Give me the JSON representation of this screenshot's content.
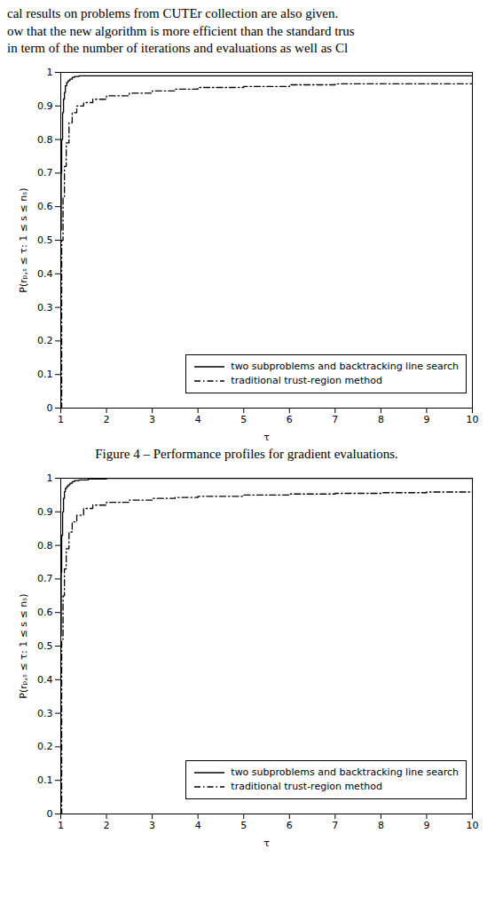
{
  "chart_data": [
    {
      "type": "step",
      "annotations": [
        "cal results on problems from CUTEr collection are also given.",
        "ow that the new algorithm is more efficient than the standard trus",
        "in term of the number of iterations and evaluations as well as Cl"
      ],
      "caption": "Figure 4 – Performance profiles for gradient evaluations.",
      "xlabel": "τ",
      "ylabel": "P(rₚ,ₛ ≤ τ: 1 ≤ s ≤ nₛ)",
      "xlim": [
        1,
        10
      ],
      "ylim": [
        0,
        1
      ],
      "xticks": [
        1,
        2,
        3,
        4,
        5,
        6,
        7,
        8,
        9,
        10
      ],
      "yticks": [
        0,
        0.1,
        0.2,
        0.3,
        0.4,
        0.5,
        0.6,
        0.7,
        0.8,
        0.9,
        1
      ],
      "grid": false,
      "legend": "lower right",
      "series": [
        {
          "name": "two subproblems and backtracking line search",
          "color": "#000000",
          "line_style": "solid",
          "x": [
            1.0,
            1.01,
            1.02,
            1.04,
            1.06,
            1.08,
            1.1,
            1.13,
            1.16,
            1.2,
            1.25,
            1.3,
            1.4,
            1.6,
            2.0,
            10.0
          ],
          "values": [
            0.53,
            0.7,
            0.8,
            0.88,
            0.92,
            0.94,
            0.96,
            0.97,
            0.975,
            0.98,
            0.985,
            0.988,
            0.99,
            0.99,
            0.99,
            0.99
          ]
        },
        {
          "name": "traditional trust-region method",
          "color": "#000000",
          "line_style": "dashdot",
          "x": [
            1.0,
            1.02,
            1.05,
            1.08,
            1.12,
            1.18,
            1.25,
            1.35,
            1.5,
            1.7,
            2.0,
            2.5,
            3.0,
            3.5,
            4.0,
            5.0,
            6.0,
            7.0,
            10.0
          ],
          "values": [
            0.0,
            0.5,
            0.63,
            0.72,
            0.79,
            0.85,
            0.88,
            0.9,
            0.91,
            0.92,
            0.93,
            0.938,
            0.945,
            0.95,
            0.955,
            0.958,
            0.963,
            0.966,
            0.968
          ]
        }
      ]
    },
    {
      "type": "step",
      "xlabel": "τ",
      "ylabel": "P(rₚ,ₛ ≤ τ: 1 ≤ s ≤ nₛ)",
      "xlim": [
        1,
        10
      ],
      "ylim": [
        0,
        1
      ],
      "xticks": [
        1,
        2,
        3,
        4,
        5,
        6,
        7,
        8,
        9,
        10
      ],
      "yticks": [
        0,
        0.1,
        0.2,
        0.3,
        0.4,
        0.5,
        0.6,
        0.7,
        0.8,
        0.9,
        1
      ],
      "grid": false,
      "legend": "lower right",
      "series": [
        {
          "name": "two subproblems and backtracking line search",
          "color": "#000000",
          "line_style": "solid",
          "x": [
            1.0,
            1.01,
            1.02,
            1.04,
            1.06,
            1.08,
            1.1,
            1.13,
            1.16,
            1.2,
            1.25,
            1.3,
            1.4,
            1.6,
            2.0,
            10.0
          ],
          "values": [
            0.53,
            0.72,
            0.83,
            0.9,
            0.94,
            0.96,
            0.97,
            0.975,
            0.98,
            0.985,
            0.99,
            0.993,
            0.995,
            0.998,
            1.0,
            1.0
          ]
        },
        {
          "name": "traditional trust-region method",
          "color": "#000000",
          "line_style": "dashdot",
          "x": [
            1.0,
            1.02,
            1.05,
            1.08,
            1.12,
            1.18,
            1.25,
            1.35,
            1.5,
            1.7,
            2.0,
            2.5,
            3.0,
            3.5,
            4.0,
            5.0,
            6.0,
            7.0,
            8.0,
            9.0,
            10.0
          ],
          "values": [
            0.0,
            0.52,
            0.65,
            0.73,
            0.79,
            0.84,
            0.87,
            0.89,
            0.91,
            0.92,
            0.928,
            0.935,
            0.94,
            0.943,
            0.946,
            0.95,
            0.953,
            0.955,
            0.957,
            0.959,
            0.961
          ]
        }
      ]
    }
  ]
}
